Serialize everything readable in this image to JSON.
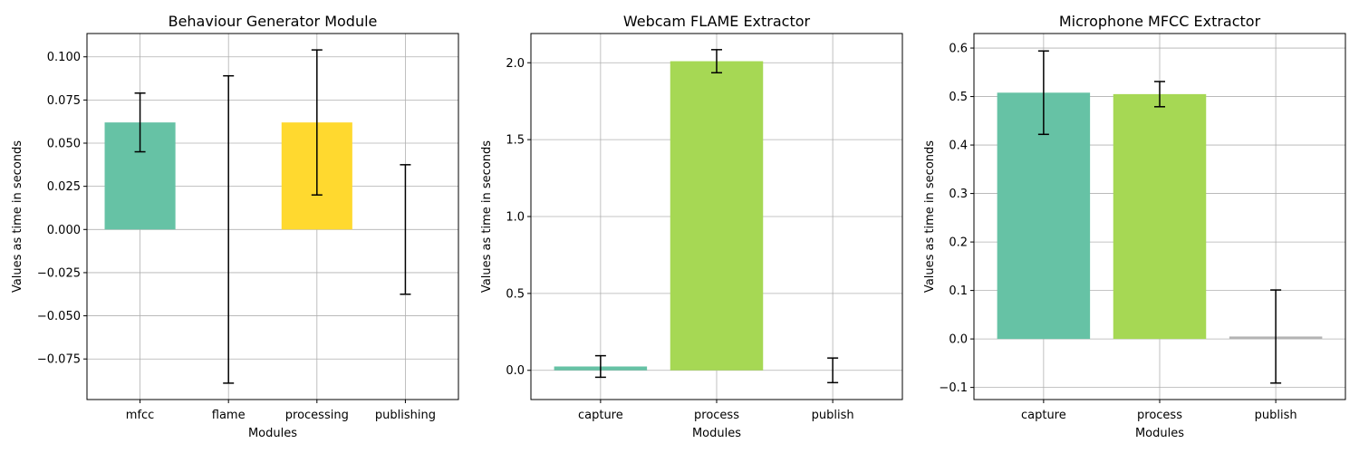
{
  "chart_data": [
    {
      "type": "bar",
      "title": "Behaviour Generator Module",
      "xlabel": "Modules",
      "ylabel": "Values as time in seconds",
      "categories": [
        "mfcc",
        "flame",
        "processing",
        "publishing"
      ],
      "values": [
        0.062,
        0.0,
        0.062,
        0.0
      ],
      "errors": [
        0.017,
        0.089,
        0.042,
        0.0375
      ],
      "colors": [
        "#66c2a5",
        "#a6d854",
        "#ffd92f",
        "#b3b3b3"
      ],
      "ylim": [
        -0.0985,
        0.1135
      ],
      "yticks": [
        -0.075,
        -0.05,
        -0.025,
        0.0,
        0.025,
        0.05,
        0.075,
        0.1
      ],
      "ytick_labels": [
        "−0.075",
        "−0.050",
        "−0.025",
        "0.000",
        "0.025",
        "0.050",
        "0.075",
        "0.100"
      ],
      "grid": true
    },
    {
      "type": "bar",
      "title": "Webcam FLAME Extractor",
      "xlabel": "Modules",
      "ylabel": "Values as time in seconds",
      "categories": [
        "capture",
        "process",
        "publish"
      ],
      "values": [
        0.025,
        2.01,
        0.0
      ],
      "errors": [
        0.07,
        0.075,
        0.08
      ],
      "colors": [
        "#66c2a5",
        "#a6d854",
        "#b3b3b3"
      ],
      "ylim": [
        -0.19,
        2.19
      ],
      "yticks": [
        0.0,
        0.5,
        1.0,
        1.5,
        2.0
      ],
      "ytick_labels": [
        "0.0",
        "0.5",
        "1.0",
        "1.5",
        "2.0"
      ],
      "grid": true
    },
    {
      "type": "bar",
      "title": "Microphone MFCC Extractor",
      "xlabel": "Modules",
      "ylabel": "Values as time in seconds",
      "categories": [
        "capture",
        "process",
        "publish"
      ],
      "values": [
        0.508,
        0.505,
        0.005
      ],
      "errors": [
        0.086,
        0.026,
        0.096
      ],
      "colors": [
        "#66c2a5",
        "#a6d854",
        "#b3b3b3"
      ],
      "ylim": [
        -0.125,
        0.63
      ],
      "yticks": [
        -0.1,
        0.0,
        0.1,
        0.2,
        0.3,
        0.4,
        0.5,
        0.6
      ],
      "ytick_labels": [
        "−0.1",
        "0.0",
        "0.1",
        "0.2",
        "0.3",
        "0.4",
        "0.5",
        "0.6"
      ],
      "grid": true
    }
  ]
}
